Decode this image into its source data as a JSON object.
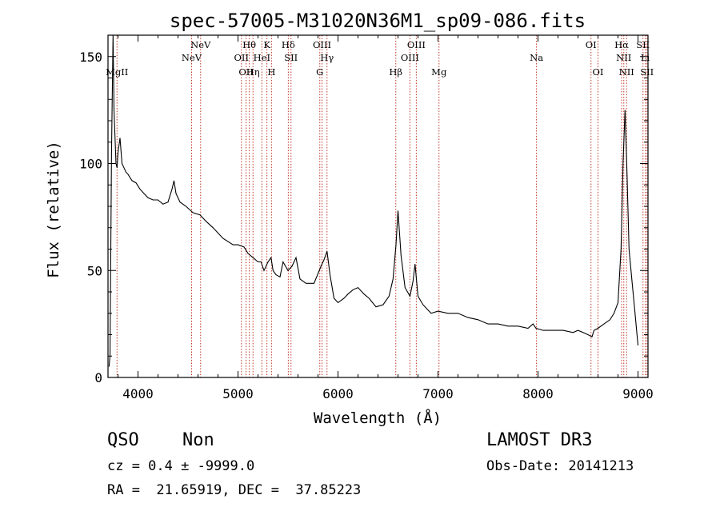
{
  "chart_data": {
    "type": "line",
    "title": "spec-57005-M31020N36M1_sp09-086.fits",
    "xlabel": "Wavelength (Å)",
    "ylabel": "Flux (relative)",
    "xlim": [
      3700,
      9100
    ],
    "ylim": [
      0,
      160
    ],
    "xticks": [
      4000,
      5000,
      6000,
      7000,
      8000,
      9000
    ],
    "xtick_labels": [
      "4000",
      "5000",
      "6000",
      "7000",
      "8000",
      "9000"
    ],
    "yticks": [
      0,
      50,
      100,
      150
    ],
    "ytick_labels": [
      "0",
      "50",
      "100",
      "150"
    ],
    "series": [
      {
        "name": "flux",
        "x": [
          3710,
          3720,
          3735,
          3750,
          3760,
          3770,
          3780,
          3790,
          3800,
          3820,
          3840,
          3860,
          3880,
          3900,
          3940,
          3980,
          4020,
          4060,
          4100,
          4150,
          4200,
          4250,
          4300,
          4340,
          4360,
          4380,
          4420,
          4480,
          4550,
          4620,
          4680,
          4750,
          4850,
          4950,
          5000,
          5060,
          5100,
          5150,
          5200,
          5230,
          5260,
          5300,
          5330,
          5350,
          5380,
          5420,
          5450,
          5500,
          5540,
          5580,
          5620,
          5680,
          5760,
          5830,
          5860,
          5890,
          5920,
          5960,
          6000,
          6060,
          6100,
          6150,
          6200,
          6260,
          6310,
          6380,
          6450,
          6510,
          6550,
          6580,
          6600,
          6630,
          6670,
          6720,
          6750,
          6770,
          6800,
          6850,
          6930,
          7000,
          7100,
          7200,
          7300,
          7400,
          7500,
          7600,
          7700,
          7800,
          7900,
          7950,
          7980,
          8050,
          8150,
          8250,
          8350,
          8400,
          8450,
          8500,
          8540,
          8560,
          8600,
          8660,
          8720,
          8760,
          8800,
          8830,
          8850,
          8870,
          8890,
          8910,
          8940,
          8970,
          9000
        ],
        "y": [
          5,
          10,
          105,
          160,
          125,
          112,
          100,
          98,
          105,
          112,
          100,
          98,
          96,
          95,
          92,
          91,
          88,
          86,
          84,
          83,
          83,
          81,
          82,
          88,
          92,
          86,
          82,
          80,
          77,
          76,
          73,
          70,
          65,
          62,
          62,
          61,
          58,
          56,
          54,
          54,
          50,
          54,
          56,
          50,
          48,
          47,
          54,
          50,
          52,
          56,
          46,
          44,
          44,
          52,
          55,
          59,
          48,
          37,
          35,
          37,
          39,
          41,
          42,
          39,
          37,
          33,
          34,
          38,
          46,
          62,
          78,
          57,
          42,
          38,
          45,
          53,
          38,
          34,
          30,
          31,
          30,
          30,
          28,
          27,
          25,
          25,
          24,
          24,
          23,
          25,
          23,
          22,
          22,
          22,
          21,
          22,
          21,
          20,
          19,
          22,
          23,
          25,
          27,
          30,
          35,
          60,
          100,
          125,
          95,
          60,
          45,
          30,
          15
        ]
      }
    ],
    "emission_lines": [
      {
        "label": "MgII",
        "x": 3790,
        "row": 3
      },
      {
        "label": "NeV",
        "x": 4536,
        "row": 2
      },
      {
        "label": "NeV",
        "x": 4626,
        "row": 1
      },
      {
        "label": "OII",
        "x": 5034,
        "row": 2
      },
      {
        "label": "OII",
        "x": 5081,
        "row": 3
      },
      {
        "label": "Hθ",
        "x": 5113,
        "row": 1
      },
      {
        "label": "Hη",
        "x": 5150,
        "row": 3
      },
      {
        "label": "HeI",
        "x": 5239,
        "row": 2
      },
      {
        "label": "K",
        "x": 5289,
        "row": 1
      },
      {
        "label": "H",
        "x": 5335,
        "row": 3
      },
      {
        "label": "Hδ",
        "x": 5503,
        "row": 1
      },
      {
        "label": "SII",
        "x": 5530,
        "row": 2
      },
      {
        "label": "G",
        "x": 5818,
        "row": 3
      },
      {
        "label": "OIII",
        "x": 5840,
        "row": 1
      },
      {
        "label": "Hγ",
        "x": 5890,
        "row": 2
      },
      {
        "label": "Hβ",
        "x": 6578,
        "row": 3
      },
      {
        "label": "OIII",
        "x": 6719,
        "row": 2
      },
      {
        "label": "OIII",
        "x": 6783,
        "row": 1
      },
      {
        "label": "Mg",
        "x": 7010,
        "row": 3
      },
      {
        "label": "Na",
        "x": 7985,
        "row": 2
      },
      {
        "label": "OI",
        "x": 8530,
        "row": 1
      },
      {
        "label": "OI",
        "x": 8600,
        "row": 3
      },
      {
        "label": "Hα",
        "x": 8836,
        "row": 1
      },
      {
        "label": "NII",
        "x": 8858,
        "row": 2
      },
      {
        "label": "NII",
        "x": 8886,
        "row": 3
      },
      {
        "label": "SII",
        "x": 9050,
        "row": 1
      },
      {
        "label": "Li",
        "x": 9072,
        "row": 2
      },
      {
        "label": "SII",
        "x": 9090,
        "row": 3
      }
    ]
  },
  "info": {
    "obj_class": "QSO",
    "subclass": "Non",
    "survey": "LAMOST DR3",
    "cz_line": "cz = 0.4 ± -9999.0",
    "obs_date_line": "Obs-Date: 20141213",
    "coords_line": "RA =  21.65919, DEC =  37.85223"
  }
}
